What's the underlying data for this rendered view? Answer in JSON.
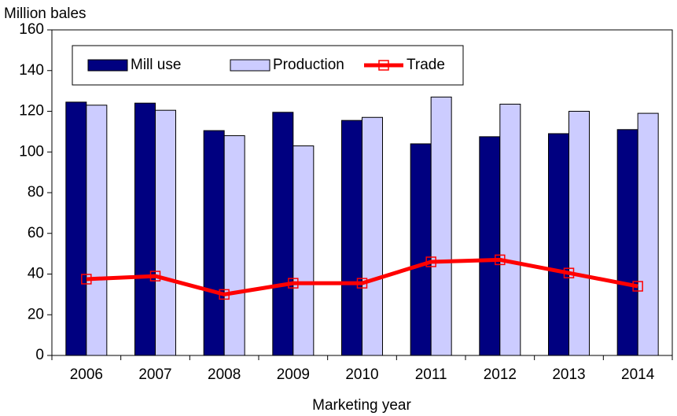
{
  "chart_data": {
    "type": "bar",
    "y_label": "Million bales",
    "x_label": "Marketing year",
    "categories": [
      "2006",
      "2007",
      "2008",
      "2009",
      "2010",
      "2011",
      "2012",
      "2013",
      "2014"
    ],
    "series": [
      {
        "name": "Mill use",
        "color": "#000080",
        "values": [
          124.5,
          124,
          110.5,
          119.5,
          115.5,
          104,
          107.5,
          109,
          111
        ]
      },
      {
        "name": "Production",
        "color": "#ccccff",
        "values": [
          123,
          120.5,
          108,
          103,
          117,
          127,
          123.5,
          120,
          119
        ]
      },
      {
        "name": "Trade",
        "type": "line",
        "color": "#ff0000",
        "values": [
          37.5,
          39,
          30,
          35.5,
          35.5,
          46,
          47,
          40.5,
          34
        ]
      }
    ],
    "ylim": [
      0,
      160
    ],
    "yticks": [
      0,
      20,
      40,
      60,
      80,
      100,
      120,
      140,
      160
    ],
    "grid": false,
    "legend": "top-left"
  }
}
